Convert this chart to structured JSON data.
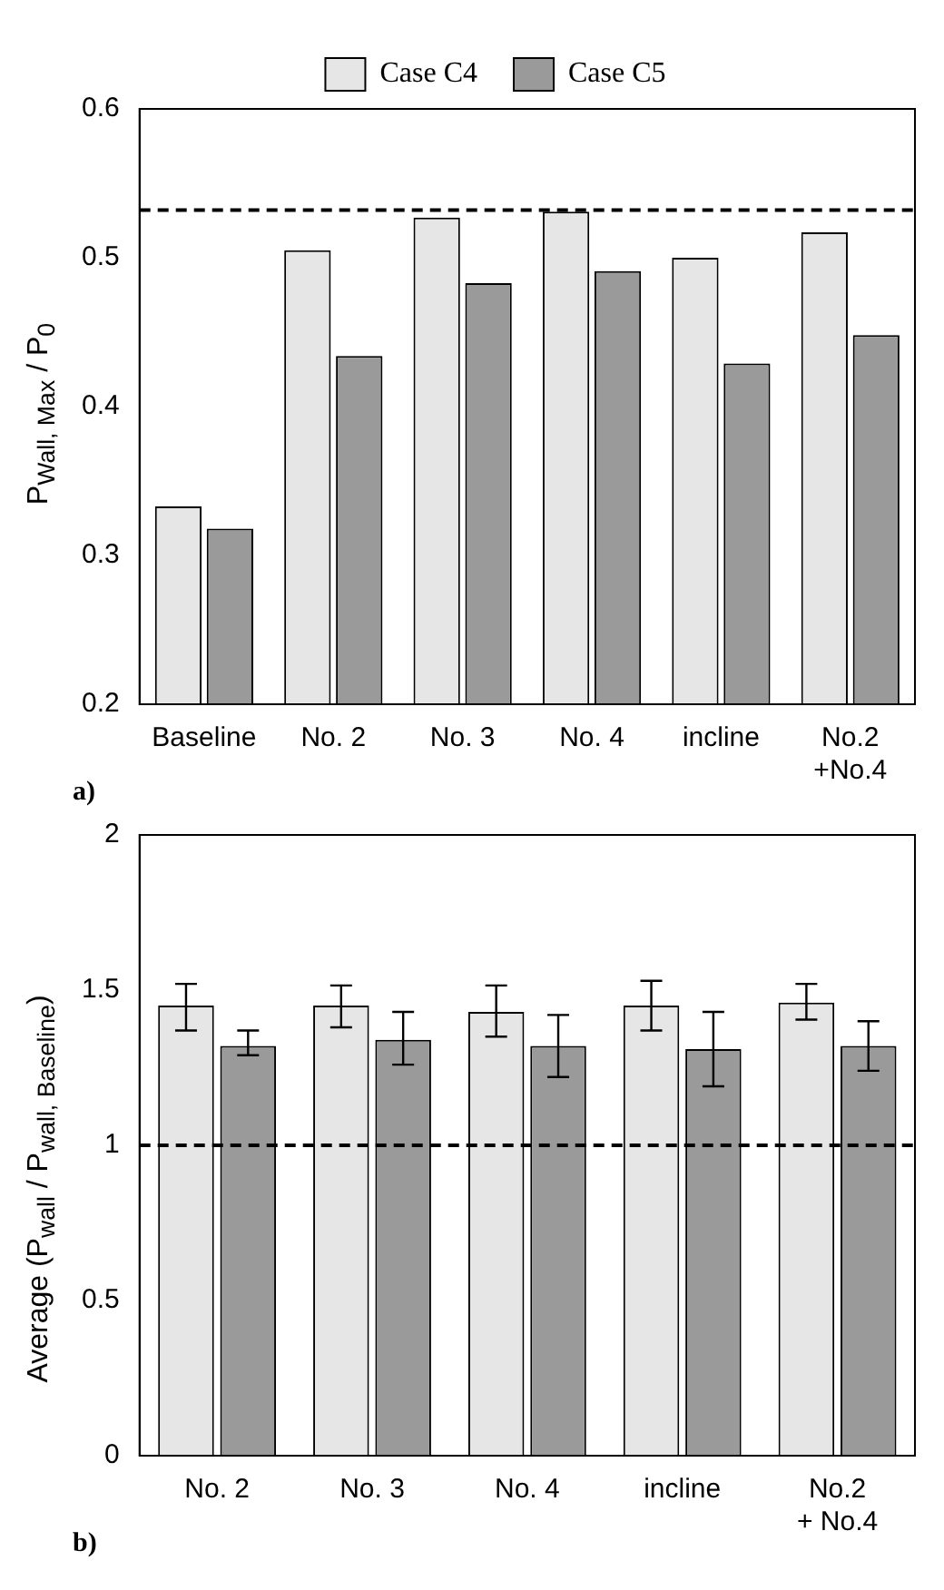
{
  "chart_data": [
    {
      "type": "bar",
      "categories": [
        "Baseline",
        "No. 2",
        "No. 3",
        "No. 4",
        "incline",
        "No.2 +No.4"
      ],
      "ylabel": "P$_{Wall, Max}$ / P$_{0}$",
      "ylim": [
        0.2,
        0.6
      ],
      "yticks": [
        0.2,
        0.3,
        0.4,
        0.5,
        0.6
      ],
      "grid": false,
      "legend": "top",
      "annotations": [
        "a)"
      ],
      "series": [
        {
          "name": "Case C4",
          "color": "#e6e6e6",
          "values": [
            0.333,
            0.505,
            0.527,
            0.531,
            0.5,
            0.517
          ]
        },
        {
          "name": "Case C5",
          "color": "#9a9a9a",
          "values": [
            0.318,
            0.434,
            0.483,
            0.491,
            0.429,
            0.448
          ]
        }
      ],
      "ref_lines": [
        {
          "axis": "y",
          "value": 0.532,
          "color": "#000000",
          "line_style": "dashed"
        }
      ]
    },
    {
      "type": "bar",
      "categories": [
        "No. 2",
        "No. 3",
        "No. 4",
        "incline",
        "No.2 + No.4"
      ],
      "ylabel": "Average (P$_{wall}$ / P$_{wall, Baseline}$)",
      "ylim": [
        0,
        2
      ],
      "yticks": [
        0,
        0.5,
        1,
        1.5,
        2
      ],
      "grid": false,
      "legend": false,
      "annotations": [
        "b)"
      ],
      "series": [
        {
          "color": "#e6e6e6",
          "values": [
            1.45,
            1.45,
            1.43,
            1.45,
            1.46
          ],
          "errors": [
            [
              1.37,
              1.52
            ],
            [
              1.38,
              1.515
            ],
            [
              1.35,
              1.515
            ],
            [
              1.37,
              1.53
            ],
            [
              1.405,
              1.52
            ]
          ]
        },
        {
          "color": "#9a9a9a",
          "values": [
            1.32,
            1.34,
            1.32,
            1.31,
            1.32
          ],
          "errors": [
            [
              1.29,
              1.37
            ],
            [
              1.26,
              1.43
            ],
            [
              1.22,
              1.42
            ],
            [
              1.19,
              1.43
            ],
            [
              1.24,
              1.4
            ]
          ]
        }
      ],
      "ref_lines": [
        {
          "axis": "y",
          "value": 1,
          "color": "#000000",
          "line_style": "dashed"
        }
      ]
    }
  ]
}
